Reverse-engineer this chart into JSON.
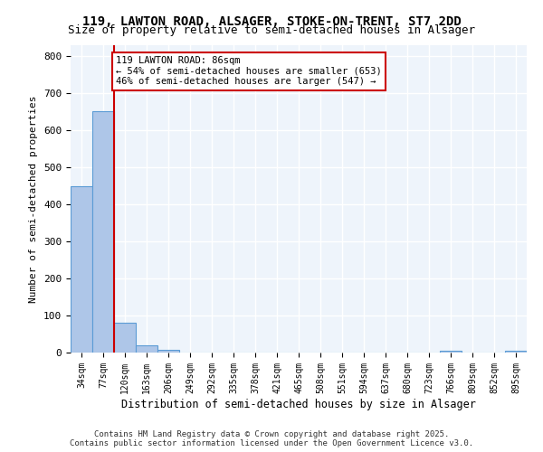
{
  "title1": "119, LAWTON ROAD, ALSAGER, STOKE-ON-TRENT, ST7 2DD",
  "title2": "Size of property relative to semi-detached houses in Alsager",
  "xlabel": "Distribution of semi-detached houses by size in Alsager",
  "ylabel": "Number of semi-detached properties",
  "bin_labels": [
    "34sqm",
    "77sqm",
    "120sqm",
    "163sqm",
    "206sqm",
    "249sqm",
    "292sqm",
    "335sqm",
    "378sqm",
    "421sqm",
    "465sqm",
    "508sqm",
    "551sqm",
    "594sqm",
    "637sqm",
    "680sqm",
    "723sqm",
    "766sqm",
    "809sqm",
    "852sqm",
    "895sqm"
  ],
  "bar_heights": [
    450,
    653,
    80,
    20,
    8,
    0,
    0,
    0,
    0,
    0,
    0,
    0,
    0,
    0,
    0,
    0,
    0,
    5,
    0,
    0,
    5
  ],
  "bar_color": "#aec6e8",
  "bar_edge_color": "#5b9bd5",
  "annotation_text": "119 LAWTON ROAD: 86sqm\n← 54% of semi-detached houses are smaller (653)\n46% of semi-detached houses are larger (547) →",
  "annotation_box_color": "#ffffff",
  "annotation_box_edge": "#cc0000",
  "vline_color": "#cc0000",
  "ylim": [
    0,
    830
  ],
  "yticks": [
    0,
    100,
    200,
    300,
    400,
    500,
    600,
    700,
    800
  ],
  "background_color": "#eef4fb",
  "grid_color": "#ffffff",
  "footer": "Contains HM Land Registry data © Crown copyright and database right 2025.\nContains public sector information licensed under the Open Government Licence v3.0."
}
